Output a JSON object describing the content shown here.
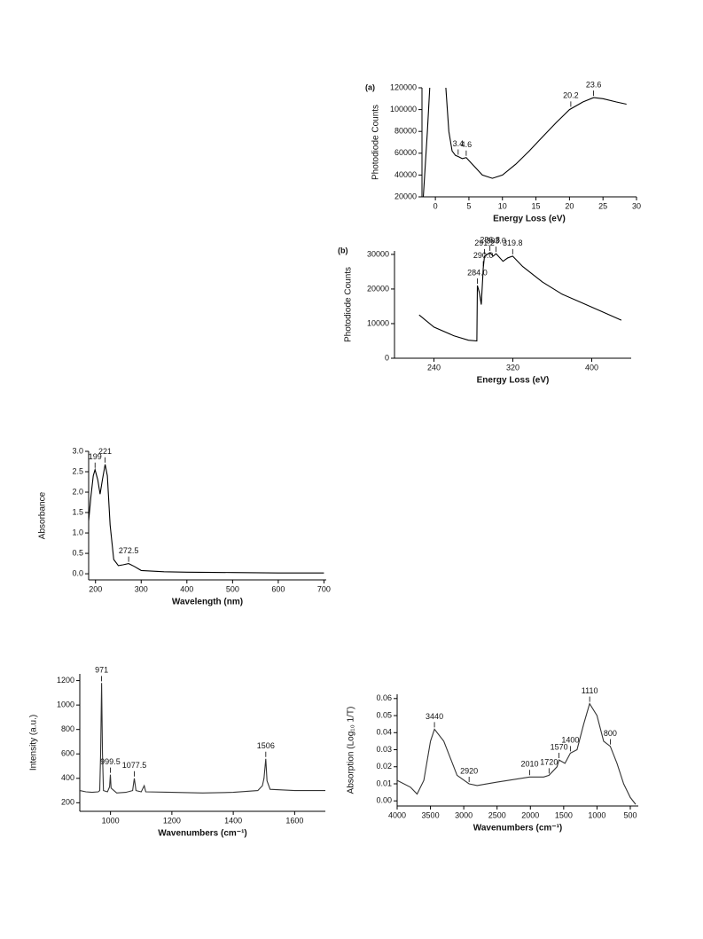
{
  "chart_data": [
    {
      "type": "line",
      "panel_label": "(a)",
      "x_label": "Energy Loss (eV)",
      "y_label": "Photodiode Counts",
      "color": "#000000",
      "x": [
        -1.8,
        -1.2,
        -0.8,
        1.5,
        2.0,
        2.5,
        3.0,
        3.4,
        4.0,
        4.6,
        5.5,
        7.0,
        8.5,
        10,
        12,
        14,
        16,
        18,
        20,
        22,
        23.6,
        25,
        27,
        28.5
      ],
      "values": [
        20000,
        80000,
        125000,
        125000,
        80000,
        62000,
        58000,
        57000,
        55000,
        56000,
        50000,
        40000,
        37000,
        40000,
        50000,
        62000,
        75000,
        88000,
        100000,
        107000,
        111000,
        110000,
        107000,
        105000
      ],
      "xlim": [
        -2,
        30
      ],
      "ylim": [
        20000,
        120000
      ],
      "xticks": [
        0,
        5,
        10,
        15,
        20,
        25,
        30
      ],
      "yticks": [
        20000,
        40000,
        60000,
        80000,
        100000,
        120000
      ],
      "annotations": [
        {
          "text": "3.4",
          "x": 3.4,
          "y": 57000
        },
        {
          "text": "4.6",
          "x": 4.6,
          "y": 56000
        },
        {
          "text": "20.2",
          "x": 20.2,
          "y": 101000
        },
        {
          "text": "23.6",
          "x": 23.6,
          "y": 111000
        }
      ]
    },
    {
      "type": "line",
      "panel_label": "(b)",
      "x_label": "Energy Loss (eV)",
      "y_label": "Photodiode Counts",
      "color": "#000000",
      "x": [
        225,
        240,
        260,
        275,
        283.5,
        284.0,
        286,
        288,
        290,
        291.2,
        294,
        296.8,
        300,
        303,
        310,
        315,
        319.8,
        330,
        350,
        370,
        390,
        410,
        430
      ],
      "values": [
        12500,
        9000,
        6500,
        5200,
        5000,
        21000,
        19000,
        15500,
        26000,
        29500,
        30000,
        30500,
        29500,
        30200,
        28000,
        29000,
        29500,
        26500,
        22000,
        18500,
        16000,
        13500,
        11000
      ],
      "xlim": [
        200,
        440
      ],
      "ylim": [
        0,
        31000
      ],
      "xticks": [
        240,
        320,
        400
      ],
      "yticks": [
        0,
        10000,
        20000,
        30000
      ],
      "annotations": [
        {
          "text": "284.0",
          "x": 284.0,
          "y": 21000
        },
        {
          "text": "290.0",
          "x": 290.0,
          "y": 26000
        },
        {
          "text": "291.2",
          "x": 291.2,
          "y": 29500
        },
        {
          "text": "296.8",
          "x": 296.8,
          "y": 30500
        },
        {
          "text": "303.0",
          "x": 303.0,
          "y": 30200
        },
        {
          "text": "319.8",
          "x": 319.8,
          "y": 29500
        }
      ]
    },
    {
      "type": "line",
      "x_label": "Wavelength (nm)",
      "y_label": "Absorbance",
      "color": "#000000",
      "x": [
        185,
        190,
        195,
        199,
        205,
        210,
        215,
        221,
        226,
        232,
        240,
        250,
        260,
        272.5,
        285,
        300,
        350,
        400,
        500,
        600,
        700
      ],
      "values": [
        1.3,
        1.9,
        2.4,
        2.55,
        2.3,
        1.95,
        2.3,
        2.68,
        2.4,
        1.2,
        0.35,
        0.2,
        0.22,
        0.25,
        0.18,
        0.08,
        0.05,
        0.04,
        0.03,
        0.02,
        0.02
      ],
      "xlim": [
        185,
        705
      ],
      "ylim": [
        -0.15,
        3.0
      ],
      "xticks": [
        200,
        300,
        400,
        500,
        600,
        700
      ],
      "yticks": [
        {
          "value": 0,
          "label": "0.0"
        },
        {
          "value": 0.5,
          "label": "0.5"
        },
        {
          "value": 1,
          "label": "1.0"
        },
        {
          "value": 1.5,
          "label": "1.5"
        },
        {
          "value": 2,
          "label": "2.0"
        },
        {
          "value": 2.5,
          "label": "2.5"
        },
        {
          "value": 3,
          "label": "3.0"
        }
      ],
      "annotations": [
        {
          "text": "199",
          "x": 199,
          "y": 2.55
        },
        {
          "text": "221",
          "x": 221,
          "y": 2.68
        },
        {
          "text": "272.5",
          "x": 272.5,
          "y": 0.25
        }
      ]
    },
    {
      "type": "line",
      "x_label": "Wavenumbers (cm⁻¹)",
      "y_label": "Intensity (a.u.)",
      "color": "#333333",
      "x": [
        900,
        920,
        940,
        960,
        965,
        968,
        971,
        974,
        977,
        990,
        997,
        999.5,
        1002,
        1020,
        1050,
        1072,
        1077.5,
        1083,
        1100,
        1110,
        1115,
        1200,
        1300,
        1400,
        1480,
        1495,
        1500,
        1506,
        1510,
        1520,
        1600,
        1700
      ],
      "values": [
        300,
        290,
        285,
        290,
        300,
        600,
        1180,
        600,
        300,
        290,
        330,
        430,
        320,
        280,
        285,
        300,
        400,
        300,
        290,
        340,
        290,
        285,
        280,
        285,
        300,
        340,
        400,
        560,
        380,
        310,
        300,
        300
      ],
      "xlim": [
        900,
        1700
      ],
      "ylim": [
        130,
        1255
      ],
      "xticks": [
        1000,
        1200,
        1400,
        1600
      ],
      "yticks": [
        200,
        400,
        600,
        800,
        1000,
        1200
      ],
      "annotations": [
        {
          "text": "971",
          "x": 971,
          "y": 1180
        },
        {
          "text": "999.5",
          "x": 999.5,
          "y": 430
        },
        {
          "text": "1077.5",
          "x": 1077.5,
          "y": 400
        },
        {
          "text": "1506",
          "x": 1506,
          "y": 560
        }
      ]
    },
    {
      "type": "line",
      "x_label": "Wavenumbers (cm⁻¹)",
      "y_label": "Absorption (Log₁₀ 1/T)",
      "color": "#333333",
      "x": [
        4000,
        3800,
        3700,
        3600,
        3500,
        3440,
        3300,
        3100,
        2920,
        2800,
        2500,
        2010,
        1800,
        1720,
        1600,
        1570,
        1480,
        1400,
        1300,
        1200,
        1110,
        1000,
        900,
        800,
        700,
        600,
        500,
        420
      ],
      "values": [
        0.012,
        0.008,
        0.004,
        0.012,
        0.035,
        0.042,
        0.035,
        0.015,
        0.01,
        0.009,
        0.011,
        0.014,
        0.014,
        0.015,
        0.02,
        0.024,
        0.022,
        0.028,
        0.03,
        0.045,
        0.057,
        0.05,
        0.035,
        0.032,
        0.022,
        0.01,
        0.002,
        -0.002
      ],
      "xlim": [
        4000,
        380
      ],
      "ylim": [
        -0.003,
        0.0625
      ],
      "xticks": [
        4000,
        3500,
        3000,
        2500,
        2000,
        1500,
        1000,
        500
      ],
      "yticks": [
        {
          "value": 0,
          "label": "0.00"
        },
        {
          "value": 0.01,
          "label": "0.01"
        },
        {
          "value": 0.02,
          "label": "0.02"
        },
        {
          "value": 0.03,
          "label": "0.03"
        },
        {
          "value": 0.04,
          "label": "0.04"
        },
        {
          "value": 0.05,
          "label": "0.05"
        },
        {
          "value": 0.06,
          "label": "0.06"
        }
      ],
      "annotations": [
        {
          "text": "3440",
          "x": 3440,
          "y": 0.042
        },
        {
          "text": "2920",
          "x": 2920,
          "y": 0.01
        },
        {
          "text": "2010",
          "x": 2010,
          "y": 0.014
        },
        {
          "text": "1720",
          "x": 1720,
          "y": 0.015
        },
        {
          "text": "1570",
          "x": 1570,
          "y": 0.024
        },
        {
          "text": "1400",
          "x": 1400,
          "y": 0.028
        },
        {
          "text": "1110",
          "x": 1110,
          "y": 0.057
        },
        {
          "text": "800",
          "x": 800,
          "y": 0.032
        }
      ]
    }
  ]
}
